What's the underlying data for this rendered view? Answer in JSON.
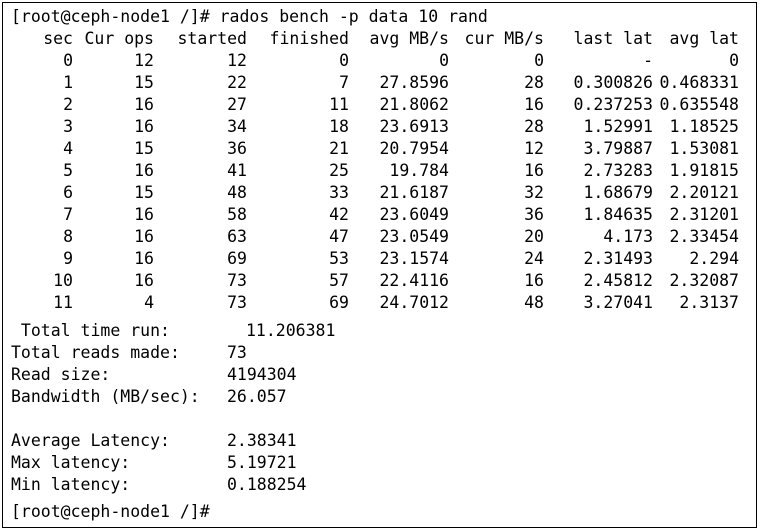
{
  "terminal": {
    "command_line": "[root@ceph-node1 /]# rados bench -p data 10 rand",
    "headers": {
      "sec": "sec",
      "cur_ops": "Cur ops",
      "started": "started",
      "finished": "finished",
      "avg_mbs": "avg MB/s",
      "cur_mbs": "cur MB/s",
      "last_lat": "last lat",
      "avg_lat": "avg lat"
    },
    "rows": [
      {
        "sec": "0",
        "cur_ops": "12",
        "started": "12",
        "finished": "0",
        "avg_mbs": "0",
        "cur_mbs": "0",
        "last_lat": "-",
        "avg_lat": "0"
      },
      {
        "sec": "1",
        "cur_ops": "15",
        "started": "22",
        "finished": "7",
        "avg_mbs": "27.8596",
        "cur_mbs": "28",
        "last_lat": "0.300826",
        "avg_lat": "0.468331"
      },
      {
        "sec": "2",
        "cur_ops": "16",
        "started": "27",
        "finished": "11",
        "avg_mbs": "21.8062",
        "cur_mbs": "16",
        "last_lat": "0.237253",
        "avg_lat": "0.635548"
      },
      {
        "sec": "3",
        "cur_ops": "16",
        "started": "34",
        "finished": "18",
        "avg_mbs": "23.6913",
        "cur_mbs": "28",
        "last_lat": "1.52991",
        "avg_lat": "1.18525"
      },
      {
        "sec": "4",
        "cur_ops": "15",
        "started": "36",
        "finished": "21",
        "avg_mbs": "20.7954",
        "cur_mbs": "12",
        "last_lat": "3.79887",
        "avg_lat": "1.53081"
      },
      {
        "sec": "5",
        "cur_ops": "16",
        "started": "41",
        "finished": "25",
        "avg_mbs": "19.784",
        "cur_mbs": "16",
        "last_lat": "2.73283",
        "avg_lat": "1.91815"
      },
      {
        "sec": "6",
        "cur_ops": "15",
        "started": "48",
        "finished": "33",
        "avg_mbs": "21.6187",
        "cur_mbs": "32",
        "last_lat": "1.68679",
        "avg_lat": "2.20121"
      },
      {
        "sec": "7",
        "cur_ops": "16",
        "started": "58",
        "finished": "42",
        "avg_mbs": "23.6049",
        "cur_mbs": "36",
        "last_lat": "1.84635",
        "avg_lat": "2.31201"
      },
      {
        "sec": "8",
        "cur_ops": "16",
        "started": "63",
        "finished": "47",
        "avg_mbs": "23.0549",
        "cur_mbs": "20",
        "last_lat": "4.173",
        "avg_lat": "2.33454"
      },
      {
        "sec": "9",
        "cur_ops": "16",
        "started": "69",
        "finished": "53",
        "avg_mbs": "23.1574",
        "cur_mbs": "24",
        "last_lat": "2.31493",
        "avg_lat": "2.294"
      },
      {
        "sec": "10",
        "cur_ops": "16",
        "started": "73",
        "finished": "57",
        "avg_mbs": "22.4116",
        "cur_mbs": "16",
        "last_lat": "2.45812",
        "avg_lat": "2.32087"
      },
      {
        "sec": "11",
        "cur_ops": "4",
        "started": "73",
        "finished": "69",
        "avg_mbs": "24.7012",
        "cur_mbs": "48",
        "last_lat": "3.27041",
        "avg_lat": "2.3137"
      }
    ],
    "summary": [
      {
        "label": " Total time run:",
        "value": "11.206381"
      },
      {
        "label": "Total reads made:",
        "value": "73"
      },
      {
        "label": "Read size:",
        "value": "4194304"
      },
      {
        "label": "Bandwidth (MB/sec):",
        "value": "26.057"
      },
      {
        "label": "Average Latency:",
        "value": "2.38341"
      },
      {
        "label": "Max latency:",
        "value": "5.19721"
      },
      {
        "label": "Min latency:",
        "value": "0.188254"
      }
    ],
    "final_prompt": "[root@ceph-node1 /]#"
  }
}
